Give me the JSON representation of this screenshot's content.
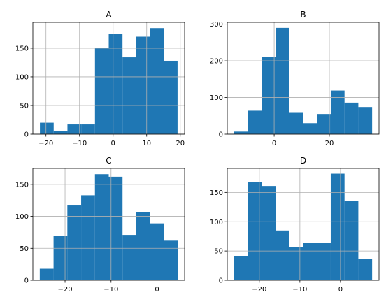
{
  "chart_data": [
    {
      "type": "histogram",
      "title": "A",
      "bins": [
        {
          "x0": -21.8,
          "x1": -17.7,
          "count": 20
        },
        {
          "x0": -17.7,
          "x1": -13.6,
          "count": 6
        },
        {
          "x0": -13.6,
          "x1": -9.5,
          "count": 17
        },
        {
          "x0": -9.5,
          "x1": -5.4,
          "count": 17
        },
        {
          "x0": -5.4,
          "x1": -1.3,
          "count": 151
        },
        {
          "x0": -1.3,
          "x1": 2.8,
          "count": 175
        },
        {
          "x0": 2.8,
          "x1": 6.9,
          "count": 134
        },
        {
          "x0": 6.9,
          "x1": 11.0,
          "count": 170
        },
        {
          "x0": 11.0,
          "x1": 15.1,
          "count": 185
        },
        {
          "x0": 15.1,
          "x1": 19.2,
          "count": 128
        }
      ],
      "xlim": [
        -23.9,
        21.3
      ],
      "ylim": [
        0,
        195
      ],
      "xticks": [
        -20,
        -10,
        0,
        10,
        20
      ],
      "yticks": [
        0,
        50,
        100,
        150
      ],
      "color": "#1f77b4",
      "grid": true
    },
    {
      "type": "histogram",
      "title": "B",
      "bins": [
        {
          "x0": -14.5,
          "x1": -9.5,
          "count": 7
        },
        {
          "x0": -9.5,
          "x1": -4.5,
          "count": 64
        },
        {
          "x0": -4.5,
          "x1": 0.5,
          "count": 210
        },
        {
          "x0": 0.5,
          "x1": 5.5,
          "count": 290
        },
        {
          "x0": 5.5,
          "x1": 10.5,
          "count": 60
        },
        {
          "x0": 10.5,
          "x1": 15.5,
          "count": 30
        },
        {
          "x0": 15.5,
          "x1": 20.5,
          "count": 55
        },
        {
          "x0": 20.5,
          "x1": 25.5,
          "count": 119
        },
        {
          "x0": 25.5,
          "x1": 30.5,
          "count": 86
        },
        {
          "x0": 30.5,
          "x1": 35.5,
          "count": 74
        }
      ],
      "xlim": [
        -17.0,
        38.0
      ],
      "ylim": [
        0,
        305
      ],
      "xticks": [
        0,
        20
      ],
      "yticks": [
        0,
        100,
        200,
        300
      ],
      "color": "#1f77b4",
      "grid": true
    },
    {
      "type": "histogram",
      "title": "C",
      "bins": [
        {
          "x0": -25.5,
          "x1": -22.5,
          "count": 18
        },
        {
          "x0": -22.5,
          "x1": -19.5,
          "count": 70
        },
        {
          "x0": -19.5,
          "x1": -16.5,
          "count": 117
        },
        {
          "x0": -16.5,
          "x1": -13.5,
          "count": 133
        },
        {
          "x0": -13.5,
          "x1": -10.5,
          "count": 166
        },
        {
          "x0": -10.5,
          "x1": -7.5,
          "count": 162
        },
        {
          "x0": -7.5,
          "x1": -4.5,
          "count": 71
        },
        {
          "x0": -4.5,
          "x1": -1.5,
          "count": 107
        },
        {
          "x0": -1.5,
          "x1": 1.5,
          "count": 89
        },
        {
          "x0": 1.5,
          "x1": 4.5,
          "count": 62
        }
      ],
      "xlim": [
        -27.0,
        6.0
      ],
      "ylim": [
        0,
        175
      ],
      "xticks": [
        -20,
        -10,
        0
      ],
      "yticks": [
        0,
        50,
        100,
        150
      ],
      "color": "#1f77b4",
      "grid": true
    },
    {
      "type": "histogram",
      "title": "D",
      "bins": [
        {
          "x0": -26.2,
          "x1": -22.8,
          "count": 41
        },
        {
          "x0": -22.8,
          "x1": -19.4,
          "count": 168
        },
        {
          "x0": -19.4,
          "x1": -16.0,
          "count": 161
        },
        {
          "x0": -16.0,
          "x1": -12.6,
          "count": 85
        },
        {
          "x0": -12.6,
          "x1": -9.2,
          "count": 57
        },
        {
          "x0": -9.2,
          "x1": -5.8,
          "count": 64
        },
        {
          "x0": -5.8,
          "x1": -2.4,
          "count": 64
        },
        {
          "x0": -2.4,
          "x1": 1.0,
          "count": 182
        },
        {
          "x0": 1.0,
          "x1": 4.4,
          "count": 136
        },
        {
          "x0": 4.4,
          "x1": 7.8,
          "count": 37
        }
      ],
      "xlim": [
        -27.9,
        9.5
      ],
      "ylim": [
        0,
        191
      ],
      "xticks": [
        -20,
        -10,
        0
      ],
      "yticks": [
        0,
        50,
        100,
        150
      ],
      "color": "#1f77b4",
      "grid": true
    }
  ]
}
